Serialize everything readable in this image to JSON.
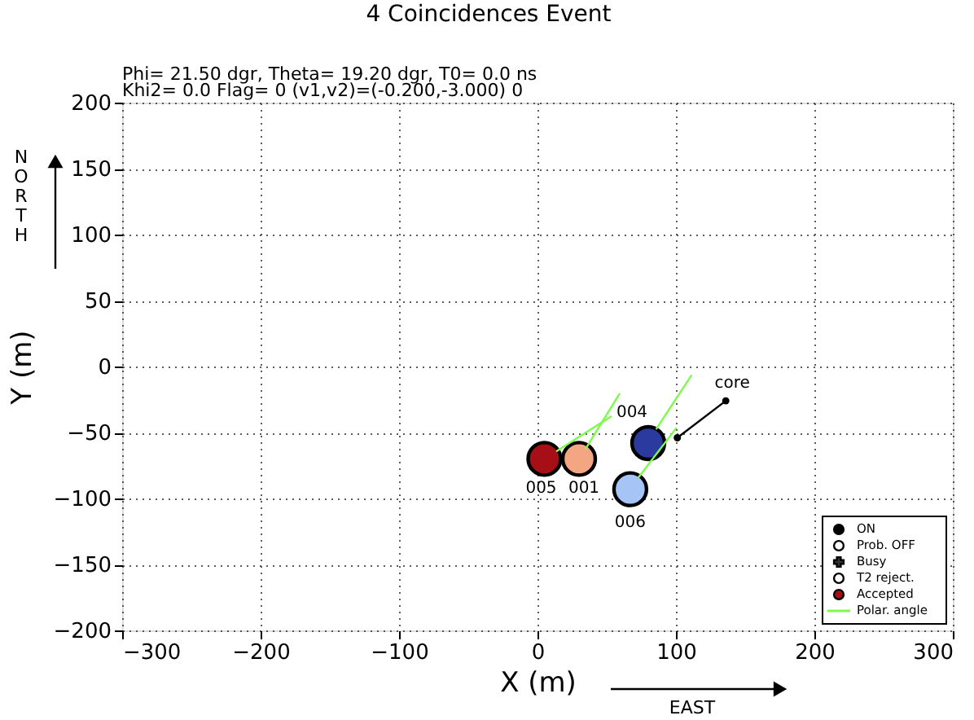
{
  "chart_data": {
    "type": "scatter",
    "title": "4 Coincidences Event",
    "subtitle": "Phi=  21.50 dgr, Theta=  19.20 dgr, T0=  0.0 ns\nKhi2=   0.0 Flag=  0 (v1,v2)=(-0.200,-3.000) 0",
    "xlabel": "X (m)",
    "ylabel": "Y (m)",
    "xlim": [
      -300,
      300
    ],
    "ylim": [
      -200,
      200
    ],
    "xticks": [
      -300,
      -200,
      -100,
      0,
      100,
      200,
      300
    ],
    "yticks": [
      -200,
      -150,
      -100,
      -50,
      0,
      50,
      100,
      150,
      200
    ],
    "grid": true,
    "legend": "bottom right",
    "series": [
      {
        "name": "ON",
        "type": "scatter",
        "marker": "circle",
        "color": "#000000"
      },
      {
        "name": "Prob. OFF",
        "type": "scatter",
        "marker": "circle",
        "color": "#ffffff"
      },
      {
        "name": "Busy",
        "type": "scatter",
        "marker": "cross",
        "color": "#333333"
      },
      {
        "name": "T2 reject.",
        "type": "scatter",
        "marker": "circle",
        "color": "#ffffff"
      },
      {
        "name": "Accepted",
        "marker": "circle",
        "x": [
          5,
          30,
          80,
          67
        ],
        "values": [
          -70,
          -70,
          -58,
          -93
        ],
        "colors": [
          "#a50f15",
          "#f4a582",
          "#2b3a9e",
          "#a6c4f5"
        ]
      },
      {
        "name": "Polar. angle",
        "type": "line",
        "marker": "none",
        "line_style": "solid",
        "color": "#7cfc4a",
        "x": [
          14,
          53,
          null,
          35,
          59,
          null,
          86,
          111,
          null,
          73,
          100
        ],
        "values": [
          -64,
          -38,
          null,
          -62,
          -21,
          null,
          -47,
          -7,
          null,
          -84,
          -47
        ]
      },
      {
        "type": "line",
        "marker": "circle",
        "line_style": "solid",
        "color": "#000000",
        "x": [
          101,
          136
        ],
        "values": [
          -54,
          -26
        ]
      }
    ],
    "annotations": [
      "NORTH",
      "EAST",
      {
        "text": "004",
        "x": 80,
        "y": -58
      },
      {
        "text": "005",
        "x": 5,
        "y": -70
      },
      {
        "text": "001",
        "x": 30,
        "y": -70
      },
      {
        "text": "006",
        "x": 67,
        "y": -93
      },
      {
        "text": "core",
        "x": 136,
        "y": -26
      }
    ]
  }
}
